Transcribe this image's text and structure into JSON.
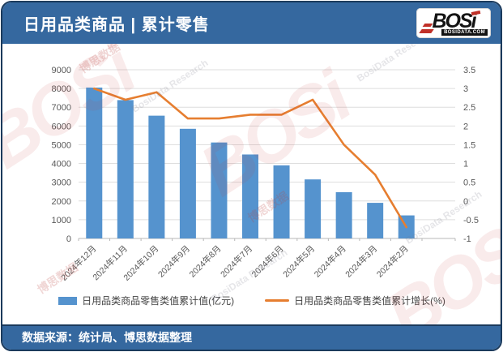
{
  "header": {
    "title": "日用品类商品 | 累计零售"
  },
  "logo": {
    "text": "BOSi",
    "domain": "BOSIDATA.COM"
  },
  "watermark": {
    "logo": "BOSi",
    "cn": "博思数据",
    "en": "BosiData Research"
  },
  "legend": {
    "bar_label": "日用品类商品零售类值累计值(亿元)",
    "line_label": "日用品类商品零售类值累计增长(%)"
  },
  "footer": {
    "source": "数据来源：统计局、博思数据整理"
  },
  "chart_data": {
    "type": "combo",
    "title": "日用品类商品 | 累计零售",
    "categories": [
      "2024年12月",
      "2024年11月",
      "2024年10月",
      "2024年9月",
      "2024年8月",
      "2024年7月",
      "2024年6月",
      "2024年5月",
      "2024年4月",
      "2024年3月",
      "2024年2月"
    ],
    "series": [
      {
        "name": "日用品类商品零售类值累计值(亿元)",
        "type": "bar",
        "axis": "left",
        "values": [
          8050,
          7380,
          6550,
          5850,
          5120,
          4480,
          3900,
          3150,
          2470,
          1900,
          1230
        ]
      },
      {
        "name": "日用品类商品零售类值累计增长(%)",
        "type": "line",
        "axis": "right",
        "values": [
          3.0,
          2.7,
          2.9,
          2.2,
          2.2,
          2.3,
          2.3,
          2.7,
          1.5,
          0.7,
          -0.7
        ]
      }
    ],
    "left_axis": {
      "min": 0,
      "max": 9000,
      "step": 1000
    },
    "right_axis": {
      "min": -1,
      "max": 3.5,
      "step": 0.5
    },
    "grid": true,
    "legend_position": "bottom",
    "colors": {
      "bar": "#5593CE",
      "line": "#E67E30"
    }
  }
}
